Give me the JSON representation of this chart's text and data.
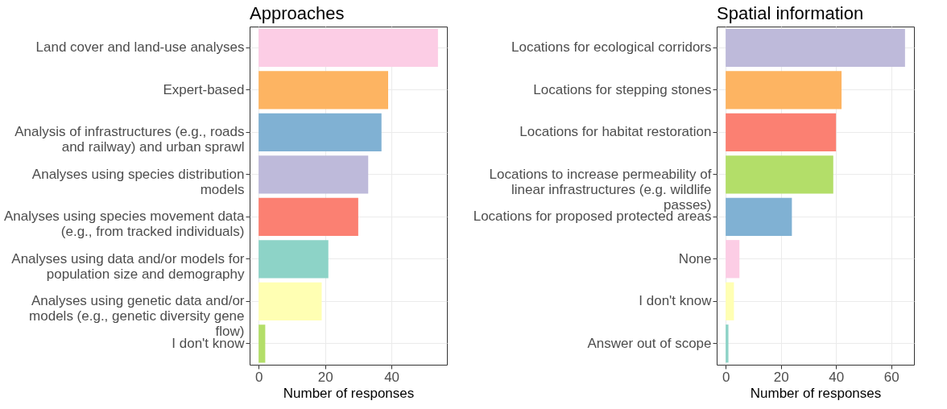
{
  "chart_data": [
    {
      "type": "bar",
      "orientation": "horizontal",
      "title": "Approaches",
      "xlabel": "Number of responses",
      "categories": [
        "Land cover and land-use analyses",
        "Expert-based",
        "Analysis of infrastructures (e.g., roads and railway) and urban sprawl",
        "Analyses using species distribution models",
        "Analyses using species movement data (e.g., from tracked individuals)",
        "Analyses using data and/or models for population size and demography",
        "Analyses using genetic data and/or models (e.g., genetic diversity gene flow)",
        "I don't know"
      ],
      "values": [
        54,
        39,
        37,
        33,
        30,
        21,
        19,
        2
      ],
      "colors": [
        "#fccde5",
        "#fdb462",
        "#80b1d3",
        "#bebada",
        "#fb8072",
        "#8dd3c7",
        "#ffffb3",
        "#b3de69"
      ],
      "xlim": [
        -2.7,
        56.7
      ],
      "xticks": [
        0,
        20,
        40
      ],
      "grid": true
    },
    {
      "type": "bar",
      "orientation": "horizontal",
      "title": "Spatial information",
      "xlabel": "Number of responses",
      "categories": [
        "Locations for ecological corridors",
        "Locations for stepping stones",
        "Locations for habitat restoration",
        "Locations to increase permeability of linear infrastructures (e.g. wildlife passes)",
        "Locations for proposed protected areas",
        "None",
        "I don't know",
        "Answer out of scope"
      ],
      "values": [
        65,
        42,
        40,
        39,
        24,
        5,
        3,
        1
      ],
      "colors": [
        "#bebada",
        "#fdb462",
        "#fb8072",
        "#b3de69",
        "#80b1d3",
        "#fccde5",
        "#ffffb3",
        "#8dd3c7"
      ],
      "xlim": [
        -3.25,
        68.25
      ],
      "xticks": [
        0,
        20,
        40,
        60
      ],
      "grid": true
    }
  ]
}
